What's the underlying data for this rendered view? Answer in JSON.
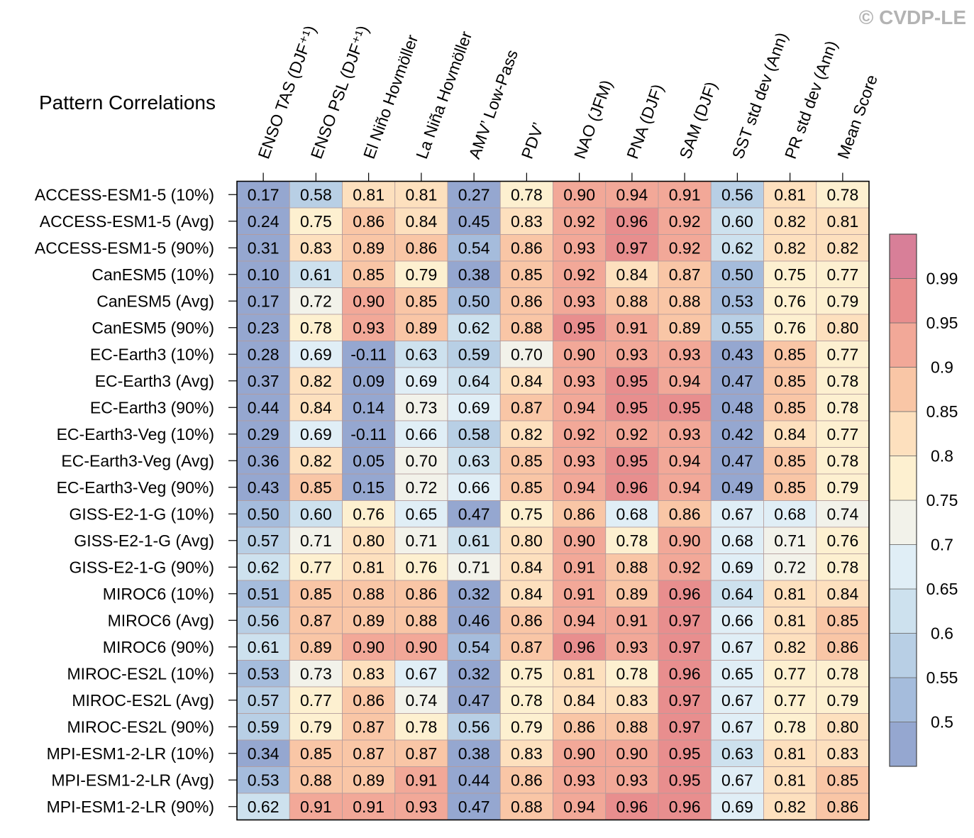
{
  "chart_data": {
    "type": "heatmap",
    "title": "Pattern Correlations",
    "columns": [
      "ENSO TAS (DJF⁺¹)",
      "ENSO PSL (DJF⁺¹)",
      "El Niño Hovmöller",
      "La Niña Hovmöller",
      "AMV’ Low-Pass",
      "PDV’",
      "NAO (JFM)",
      "PNA (DJF)",
      "SAM (DJF)",
      "SST std dev (Ann)",
      "PR std dev (Ann)",
      "Mean Score"
    ],
    "rows": [
      "ACCESS-ESM1-5 (10%)",
      "ACCESS-ESM1-5 (Avg)",
      "ACCESS-ESM1-5 (90%)",
      "CanESM5 (10%)",
      "CanESM5 (Avg)",
      "CanESM5 (90%)",
      "EC-Earth3 (10%)",
      "EC-Earth3 (Avg)",
      "EC-Earth3 (90%)",
      "EC-Earth3-Veg (10%)",
      "EC-Earth3-Veg (Avg)",
      "EC-Earth3-Veg (90%)",
      "GISS-E2-1-G (10%)",
      "GISS-E2-1-G (Avg)",
      "GISS-E2-1-G (90%)",
      "MIROC6 (10%)",
      "MIROC6 (Avg)",
      "MIROC6 (90%)",
      "MIROC-ES2L (10%)",
      "MIROC-ES2L (Avg)",
      "MIROC-ES2L (90%)",
      "MPI-ESM1-2-LR (10%)",
      "MPI-ESM1-2-LR (Avg)",
      "MPI-ESM1-2-LR (90%)"
    ],
    "values": [
      [
        "0.17",
        "0.58",
        "0.81",
        "0.81",
        "0.27",
        "0.78",
        "0.90",
        "0.94",
        "0.91",
        "0.56",
        "0.81",
        "0.78"
      ],
      [
        "0.24",
        "0.75",
        "0.86",
        "0.84",
        "0.45",
        "0.83",
        "0.92",
        "0.96",
        "0.92",
        "0.60",
        "0.82",
        "0.81"
      ],
      [
        "0.31",
        "0.83",
        "0.89",
        "0.86",
        "0.54",
        "0.86",
        "0.93",
        "0.97",
        "0.92",
        "0.62",
        "0.82",
        "0.82"
      ],
      [
        "0.10",
        "0.61",
        "0.85",
        "0.79",
        "0.38",
        "0.85",
        "0.92",
        "0.84",
        "0.87",
        "0.50",
        "0.75",
        "0.77"
      ],
      [
        "0.17",
        "0.72",
        "0.90",
        "0.85",
        "0.50",
        "0.86",
        "0.93",
        "0.88",
        "0.88",
        "0.53",
        "0.76",
        "0.79"
      ],
      [
        "0.23",
        "0.78",
        "0.93",
        "0.89",
        "0.62",
        "0.88",
        "0.95",
        "0.91",
        "0.89",
        "0.55",
        "0.76",
        "0.80"
      ],
      [
        "0.28",
        "0.69",
        "-0.11",
        "0.63",
        "0.59",
        "0.70",
        "0.90",
        "0.93",
        "0.93",
        "0.43",
        "0.85",
        "0.77"
      ],
      [
        "0.37",
        "0.82",
        "0.09",
        "0.69",
        "0.64",
        "0.84",
        "0.93",
        "0.95",
        "0.94",
        "0.47",
        "0.85",
        "0.78"
      ],
      [
        "0.44",
        "0.84",
        "0.14",
        "0.73",
        "0.69",
        "0.87",
        "0.94",
        "0.95",
        "0.95",
        "0.48",
        "0.85",
        "0.78"
      ],
      [
        "0.29",
        "0.69",
        "-0.11",
        "0.66",
        "0.58",
        "0.82",
        "0.92",
        "0.92",
        "0.93",
        "0.42",
        "0.84",
        "0.77"
      ],
      [
        "0.36",
        "0.82",
        "0.05",
        "0.70",
        "0.63",
        "0.85",
        "0.93",
        "0.95",
        "0.94",
        "0.47",
        "0.85",
        "0.78"
      ],
      [
        "0.43",
        "0.85",
        "0.15",
        "0.72",
        "0.66",
        "0.85",
        "0.94",
        "0.96",
        "0.94",
        "0.49",
        "0.85",
        "0.79"
      ],
      [
        "0.50",
        "0.60",
        "0.76",
        "0.65",
        "0.47",
        "0.75",
        "0.86",
        "0.68",
        "0.86",
        "0.67",
        "0.68",
        "0.74"
      ],
      [
        "0.57",
        "0.71",
        "0.80",
        "0.71",
        "0.61",
        "0.80",
        "0.90",
        "0.78",
        "0.90",
        "0.68",
        "0.71",
        "0.76"
      ],
      [
        "0.62",
        "0.77",
        "0.81",
        "0.76",
        "0.71",
        "0.84",
        "0.91",
        "0.88",
        "0.92",
        "0.69",
        "0.72",
        "0.78"
      ],
      [
        "0.51",
        "0.85",
        "0.88",
        "0.86",
        "0.32",
        "0.84",
        "0.91",
        "0.89",
        "0.96",
        "0.64",
        "0.81",
        "0.84"
      ],
      [
        "0.56",
        "0.87",
        "0.89",
        "0.88",
        "0.46",
        "0.86",
        "0.94",
        "0.91",
        "0.97",
        "0.66",
        "0.81",
        "0.85"
      ],
      [
        "0.61",
        "0.89",
        "0.90",
        "0.90",
        "0.54",
        "0.87",
        "0.96",
        "0.93",
        "0.97",
        "0.67",
        "0.82",
        "0.86"
      ],
      [
        "0.53",
        "0.73",
        "0.83",
        "0.67",
        "0.32",
        "0.75",
        "0.81",
        "0.78",
        "0.96",
        "0.65",
        "0.77",
        "0.78"
      ],
      [
        "0.57",
        "0.77",
        "0.86",
        "0.74",
        "0.47",
        "0.78",
        "0.84",
        "0.83",
        "0.97",
        "0.67",
        "0.77",
        "0.79"
      ],
      [
        "0.59",
        "0.79",
        "0.87",
        "0.78",
        "0.56",
        "0.79",
        "0.86",
        "0.88",
        "0.97",
        "0.67",
        "0.78",
        "0.80"
      ],
      [
        "0.34",
        "0.85",
        "0.87",
        "0.87",
        "0.38",
        "0.83",
        "0.90",
        "0.90",
        "0.95",
        "0.63",
        "0.81",
        "0.83"
      ],
      [
        "0.53",
        "0.88",
        "0.89",
        "0.91",
        "0.44",
        "0.86",
        "0.93",
        "0.93",
        "0.95",
        "0.67",
        "0.81",
        "0.85"
      ],
      [
        "0.62",
        "0.91",
        "0.91",
        "0.93",
        "0.47",
        "0.88",
        "0.94",
        "0.96",
        "0.96",
        "0.69",
        "0.82",
        "0.86"
      ]
    ],
    "colorbar": {
      "levels": [
        0.5,
        0.55,
        0.6,
        0.65,
        0.7,
        0.75,
        0.8,
        0.85,
        0.9,
        0.95,
        0.99
      ],
      "labels": [
        "0.5",
        "0.55",
        "0.6",
        "0.65",
        "0.7",
        "0.75",
        "0.8",
        "0.85",
        "0.9",
        "0.95",
        "0.99"
      ],
      "colors": [
        "#95a7d0",
        "#a5bcdc",
        "#b8cfe5",
        "#cde1ee",
        "#e0eef6",
        "#f2f2ea",
        "#fdf0d0",
        "#fde0be",
        "#f9c6a6",
        "#f2a898",
        "#e88e8e",
        "#d87f98"
      ]
    }
  },
  "watermark": "© CVDP-LE"
}
